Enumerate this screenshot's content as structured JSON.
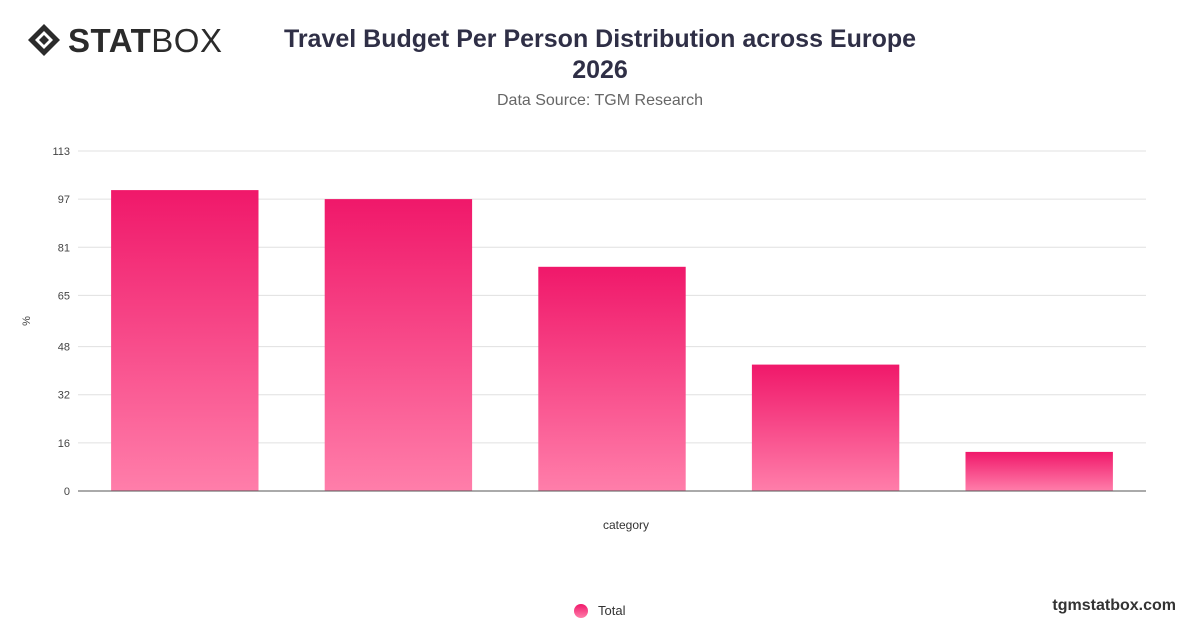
{
  "logo": {
    "bold": "STAT",
    "light": "BOX",
    "icon": "statbox-diamond-icon"
  },
  "title_line1": "Travel Budget Per Person Distribution across Europe",
  "title_line2": "2026",
  "subtitle": "Data Source: TGM Research",
  "brand": "tgmstatbox.com",
  "colors": {
    "bar_top": "#f0186a",
    "bar_bottom": "#ff7eaa",
    "grid": "#e0e0e0",
    "axis": "#555555"
  },
  "chart_data": {
    "type": "bar",
    "categories": [
      "",
      "",
      "",
      "",
      ""
    ],
    "series": [
      {
        "name": "Total",
        "values": [
          100,
          97,
          74.5,
          42,
          13
        ]
      }
    ],
    "xlabel": "category",
    "ylabel": "%",
    "ylim": [
      0,
      113
    ],
    "yticks": [
      0,
      16,
      32,
      48,
      65,
      81,
      97,
      113
    ],
    "grid": true,
    "legend": "bottom-center"
  }
}
